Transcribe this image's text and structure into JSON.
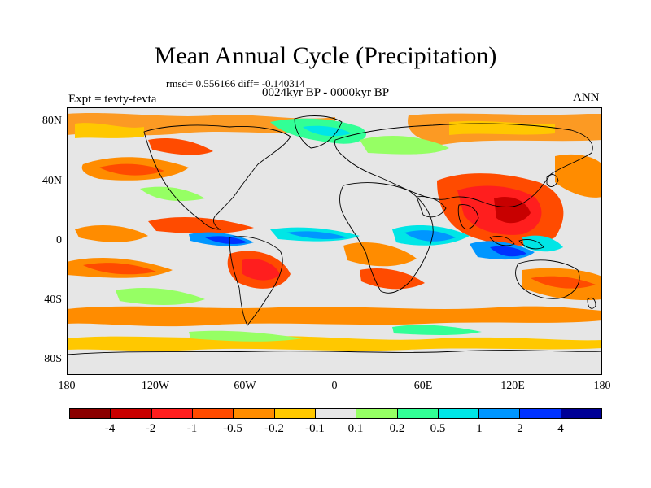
{
  "title": "Mean Annual Cycle (Precipitation)",
  "stats_text": "rmsd= 0.556166 diff= -0.140314",
  "period_text": "0024kyr BP - 0000kyr BP",
  "experiment_text": "Expt = tevty-tevta",
  "season_text": "ANN",
  "map": {
    "lat_labels": [
      "80N",
      "40N",
      "0",
      "40S",
      "80S"
    ],
    "lon_labels": [
      "180",
      "120W",
      "60W",
      "0",
      "60E",
      "120E",
      "180"
    ],
    "background_color": "#e6e6e6"
  },
  "colorbar": {
    "colors": [
      "#8b0000",
      "#c80000",
      "#ff1e1e",
      "#ff4b00",
      "#ff8c00",
      "#ffc800",
      "#e6e6e6",
      "#96ff64",
      "#32ff96",
      "#00e6e6",
      "#0096ff",
      "#0032ff",
      "#000096"
    ],
    "labels": [
      "-4",
      "-2",
      "-1",
      "-0.5",
      "-0.2",
      "-0.1",
      "0.1",
      "0.2",
      "0.5",
      "1",
      "2",
      "4"
    ]
  }
}
